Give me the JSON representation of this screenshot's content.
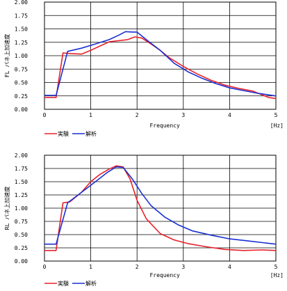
{
  "chart_data": [
    {
      "type": "line",
      "title": "",
      "xlabel": "Frequency",
      "xunit": "[Hz]",
      "ylabel": "FL バネ上加速度",
      "xlim": [
        0,
        5
      ],
      "ylim": [
        0,
        2
      ],
      "x_ticks": [
        "0",
        "1",
        "2",
        "3",
        "4",
        "5"
      ],
      "y_ticks": [
        "0.00",
        "0.25",
        "0.50",
        "0.75",
        "1.00",
        "1.25",
        "1.50",
        "1.75",
        "2.00"
      ],
      "grid": true,
      "legend_position": "bottom-left",
      "series": [
        {
          "name": "実験",
          "color": "#e8202a",
          "points": [
            [
              0,
              0.22
            ],
            [
              0.25,
              0.22
            ],
            [
              0.4,
              1.05
            ],
            [
              0.55,
              1.04
            ],
            [
              0.8,
              1.03
            ],
            [
              1.0,
              1.1
            ],
            [
              1.2,
              1.18
            ],
            [
              1.4,
              1.26
            ],
            [
              1.6,
              1.28
            ],
            [
              1.8,
              1.3
            ],
            [
              1.95,
              1.35
            ],
            [
              2.1,
              1.33
            ],
            [
              2.3,
              1.22
            ],
            [
              2.5,
              1.1
            ],
            [
              2.7,
              0.96
            ],
            [
              3.0,
              0.8
            ],
            [
              3.3,
              0.66
            ],
            [
              3.6,
              0.54
            ],
            [
              3.9,
              0.45
            ],
            [
              4.2,
              0.39
            ],
            [
              4.5,
              0.34
            ],
            [
              4.7,
              0.27
            ],
            [
              4.85,
              0.22
            ],
            [
              5.0,
              0.2
            ]
          ]
        },
        {
          "name": "解析",
          "color": "#1a2fd1",
          "points": [
            [
              0,
              0.26
            ],
            [
              0.25,
              0.26
            ],
            [
              0.5,
              1.08
            ],
            [
              0.8,
              1.14
            ],
            [
              1.1,
              1.22
            ],
            [
              1.4,
              1.3
            ],
            [
              1.6,
              1.38
            ],
            [
              1.75,
              1.45
            ],
            [
              1.9,
              1.44
            ],
            [
              2.0,
              1.44
            ],
            [
              2.2,
              1.3
            ],
            [
              2.5,
              1.1
            ],
            [
              2.8,
              0.86
            ],
            [
              3.1,
              0.7
            ],
            [
              3.4,
              0.58
            ],
            [
              3.7,
              0.48
            ],
            [
              4.0,
              0.4
            ],
            [
              4.3,
              0.35
            ],
            [
              4.6,
              0.3
            ],
            [
              5.0,
              0.25
            ]
          ]
        }
      ]
    },
    {
      "type": "line",
      "title": "",
      "xlabel": "Frequency",
      "xunit": "[Hz]",
      "ylabel": "RL バネ上加速度",
      "xlim": [
        0,
        5
      ],
      "ylim": [
        0,
        2
      ],
      "x_ticks": [
        "0",
        "1",
        "2",
        "3",
        "4",
        "5"
      ],
      "y_ticks": [
        "0.00",
        "0.25",
        "0.50",
        "0.75",
        "1.00",
        "1.25",
        "1.50",
        "1.75",
        "2.00"
      ],
      "grid": true,
      "legend_position": "bottom-left",
      "series": [
        {
          "name": "実験",
          "color": "#e8202a",
          "points": [
            [
              0,
              0.2
            ],
            [
              0.25,
              0.2
            ],
            [
              0.4,
              1.1
            ],
            [
              0.55,
              1.12
            ],
            [
              0.8,
              1.3
            ],
            [
              1.0,
              1.5
            ],
            [
              1.2,
              1.64
            ],
            [
              1.4,
              1.74
            ],
            [
              1.55,
              1.8
            ],
            [
              1.7,
              1.78
            ],
            [
              1.85,
              1.55
            ],
            [
              2.0,
              1.15
            ],
            [
              2.2,
              0.8
            ],
            [
              2.5,
              0.52
            ],
            [
              2.8,
              0.4
            ],
            [
              3.1,
              0.33
            ],
            [
              3.5,
              0.27
            ],
            [
              3.9,
              0.22
            ],
            [
              4.3,
              0.2
            ],
            [
              4.7,
              0.21
            ],
            [
              5.0,
              0.2
            ]
          ]
        },
        {
          "name": "解析",
          "color": "#1a2fd1",
          "points": [
            [
              0,
              0.32
            ],
            [
              0.25,
              0.32
            ],
            [
              0.5,
              1.1
            ],
            [
              0.8,
              1.3
            ],
            [
              1.1,
              1.5
            ],
            [
              1.35,
              1.67
            ],
            [
              1.55,
              1.78
            ],
            [
              1.7,
              1.77
            ],
            [
              1.9,
              1.55
            ],
            [
              2.1,
              1.28
            ],
            [
              2.3,
              1.05
            ],
            [
              2.6,
              0.83
            ],
            [
              2.9,
              0.68
            ],
            [
              3.2,
              0.57
            ],
            [
              3.6,
              0.49
            ],
            [
              4.0,
              0.42
            ],
            [
              4.4,
              0.38
            ],
            [
              4.8,
              0.34
            ],
            [
              5.0,
              0.32
            ]
          ]
        }
      ]
    }
  ]
}
